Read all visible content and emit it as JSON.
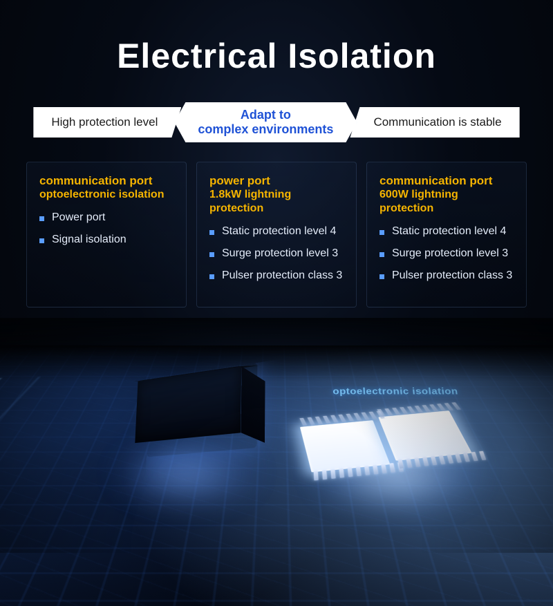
{
  "title": "Electrical Isolation",
  "pills": {
    "left": "High protection level",
    "center_line1": "Adapt to",
    "center_line2": "complex environments",
    "right": "Communication is stable"
  },
  "columns": [
    {
      "title": "communication port",
      "subtitle": "optoelectronic isolation",
      "items": [
        "Power port",
        "Signal isolation"
      ]
    },
    {
      "title": "power port",
      "subtitle": "1.8kW lightning protection",
      "items": [
        "Static protection level 4",
        "Surge protection level 3",
        "Pulser protection class 3"
      ]
    },
    {
      "title": "communication port",
      "subtitle": "600W lightning protection",
      "items": [
        "Static protection level 4",
        "Surge protection level 3",
        "Pulser protection class 3"
      ]
    }
  ],
  "chip_label": "optoelectronic isolation",
  "colors": {
    "accent_yellow": "#f5b400",
    "accent_blue": "#1f52d6",
    "bullet": "#5a9dff",
    "glow": "#7ecbff"
  },
  "pin_count": 11
}
